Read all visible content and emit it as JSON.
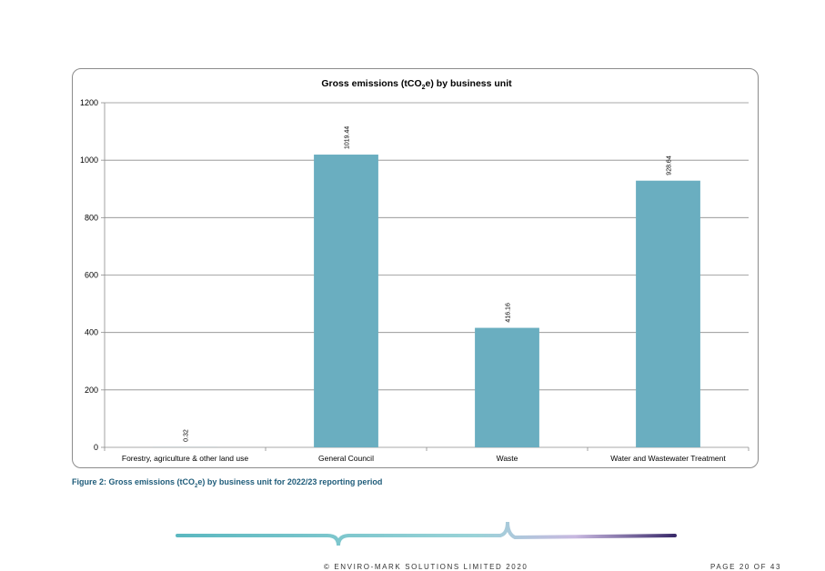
{
  "chart_data": {
    "type": "bar",
    "title_pre": "Gross emissions (tCO",
    "title_sub": "2",
    "title_post": "e) by business unit",
    "categories": [
      "Forestry, agriculture & other land use",
      "General Council",
      "Waste",
      "Water and Wastewater Treatment"
    ],
    "values": [
      0.32,
      1019.44,
      416.16,
      928.64
    ],
    "value_labels": [
      "0.32",
      "1019.44",
      "416.16",
      "928.64"
    ],
    "ylim": [
      0,
      1200
    ],
    "yticks": [
      0,
      200,
      400,
      600,
      800,
      1000,
      1200
    ],
    "grid": true,
    "bar_color": "#6aaec0"
  },
  "caption": {
    "pre": "Figure 2: Gross emissions (tCO",
    "sub": "2",
    "post": "e) by business unit for 2022/23 reporting period"
  },
  "footer": {
    "copyright": "© ENVIRO-MARK SOLUTIONS LIMITED 2020",
    "page": "PAGE 20 OF 43"
  },
  "colors": {
    "caption": "#1f5c7a",
    "band_teal": "#5bb8c0",
    "band_purple": "#3a2a6a"
  }
}
